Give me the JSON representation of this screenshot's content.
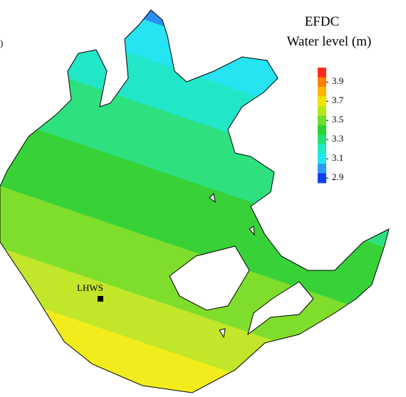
{
  "panel_label": ")",
  "legend": {
    "title": [
      "EFDC",
      "Water level (m)"
    ],
    "ticks": [
      3.9,
      3.7,
      3.5,
      3.3,
      3.1,
      2.9
    ],
    "lim": [
      2.85,
      4.05
    ],
    "colors": [
      "#ff2a1a",
      "#ff7f00",
      "#ffb400",
      "#f0e400",
      "#b8e61e",
      "#6ee02a",
      "#2ed22e",
      "#22e07a",
      "#20e8c8",
      "#22e6f4",
      "#2a9cf6",
      "#1040f0"
    ]
  },
  "station": {
    "label": "LHWS"
  }
}
